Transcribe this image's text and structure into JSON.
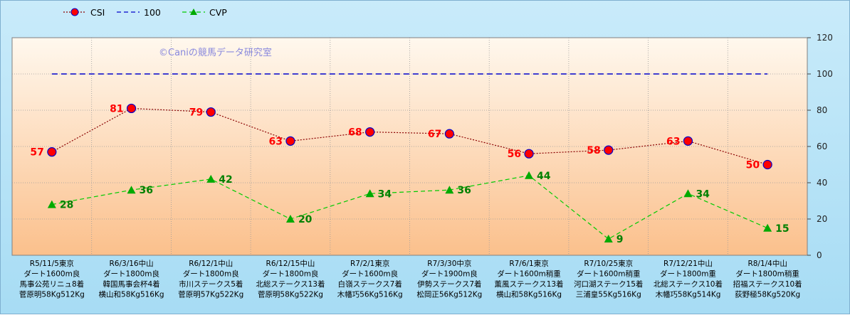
{
  "chart_data": {
    "type": "line",
    "watermark": "©Caniの競馬データ研究室",
    "legend": [
      {
        "name": "CSI",
        "color": "#8b0000",
        "marker": "circle",
        "marker_fill": "#ff0000",
        "marker_stroke": "#0000cc",
        "dash": "dotted"
      },
      {
        "name": "100",
        "color": "#0000cc",
        "marker": "none",
        "dash": "dashed"
      },
      {
        "name": "CVP",
        "color": "#00cc00",
        "marker": "triangle",
        "marker_fill": "#00aa00",
        "dash": "dashed"
      }
    ],
    "legend_position": "top-left",
    "ylim": [
      0,
      120
    ],
    "yticks": [
      "0",
      "20",
      "40",
      "60",
      "80",
      "100",
      "120"
    ],
    "y_axis_side": "right",
    "grid": true,
    "categories": [
      [
        "R5/11/5東京",
        "ダート1600m良",
        "馬事公苑リニュ8着",
        "菅原明58Kg512Kg"
      ],
      [
        "R6/3/16中山",
        "ダート1800m良",
        "韓国馬事会杯4着",
        "横山和58Kg516Kg"
      ],
      [
        "R6/12/1中山",
        "ダート1800m良",
        "市川ステークス5着",
        "菅原明57Kg522Kg"
      ],
      [
        "R6/12/15中山",
        "ダート1800m良",
        "北総ステークス13着",
        "菅原明58Kg522Kg"
      ],
      [
        "R7/2/1東京",
        "ダート1600m良",
        "白嶺ステークス7着",
        "木幡巧56Kg516Kg"
      ],
      [
        "R7/3/30中京",
        "ダート1900m良",
        "伊勢ステークス7着",
        "松岡正56Kg512Kg"
      ],
      [
        "R7/6/1東京",
        "ダート1600m稍重",
        "薫風ステークス13着",
        "横山和58Kg516Kg"
      ],
      [
        "R7/10/25東京",
        "ダート1600m稍重",
        "河口湖ステーク15着",
        "三浦皇55Kg516Kg"
      ],
      [
        "R7/12/21中山",
        "ダート1800m重",
        "北総ステークス10着",
        "木幡巧58Kg514Kg"
      ],
      [
        "R8/1/4中山",
        "ダート1800m稍重",
        "招福ステークス10着",
        "荻野極58Kg520Kg"
      ]
    ],
    "series": [
      {
        "name": "CSI",
        "values": [
          57,
          81,
          79,
          63,
          68,
          67,
          56,
          58,
          63,
          50
        ],
        "label_color": "#ff0000",
        "label_side": "left"
      },
      {
        "name": "100",
        "values": [
          100,
          100,
          100,
          100,
          100,
          100,
          100,
          100,
          100,
          100
        ]
      },
      {
        "name": "CVP",
        "values": [
          28,
          36,
          42,
          20,
          34,
          36,
          44,
          9,
          34,
          15
        ],
        "label_color": "#008000",
        "label_side": "right"
      }
    ]
  }
}
